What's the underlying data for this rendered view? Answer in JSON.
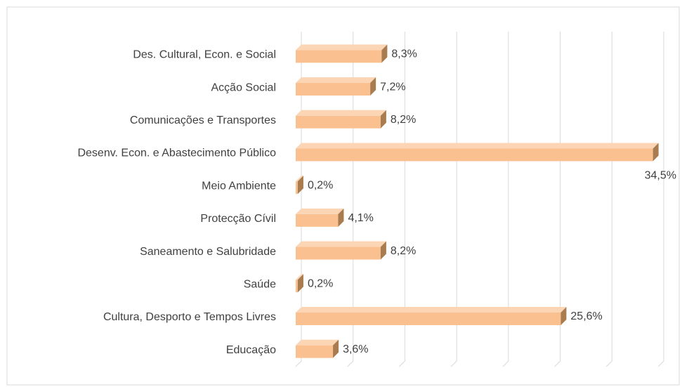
{
  "chart_data": {
    "type": "bar",
    "orientation": "horizontal",
    "categories": [
      "Des. Cultural, Econ. e Social",
      "Acção Social",
      "Comunicações e Transportes",
      "Desenv. Econ. e Abastecimento Público",
      "Meio Ambiente",
      "Protecção Cívil",
      "Saneamento e Salubridade",
      "Saúde",
      "Cultura, Desporto e Tempos Livres",
      "Educação"
    ],
    "values": [
      8.3,
      7.2,
      8.2,
      34.5,
      0.2,
      4.1,
      8.2,
      0.2,
      25.6,
      3.6
    ],
    "value_labels": [
      "8,3%",
      "7,2%",
      "8,2%",
      "34,5%",
      "0,2%",
      "4,1%",
      "8,2%",
      "0,2%",
      "25,6%",
      "3,6%"
    ],
    "color": "#fac08f",
    "xlim": [
      0,
      35
    ],
    "xticks": [
      0,
      5,
      10,
      15,
      20,
      25,
      30,
      35
    ],
    "grid": true
  }
}
